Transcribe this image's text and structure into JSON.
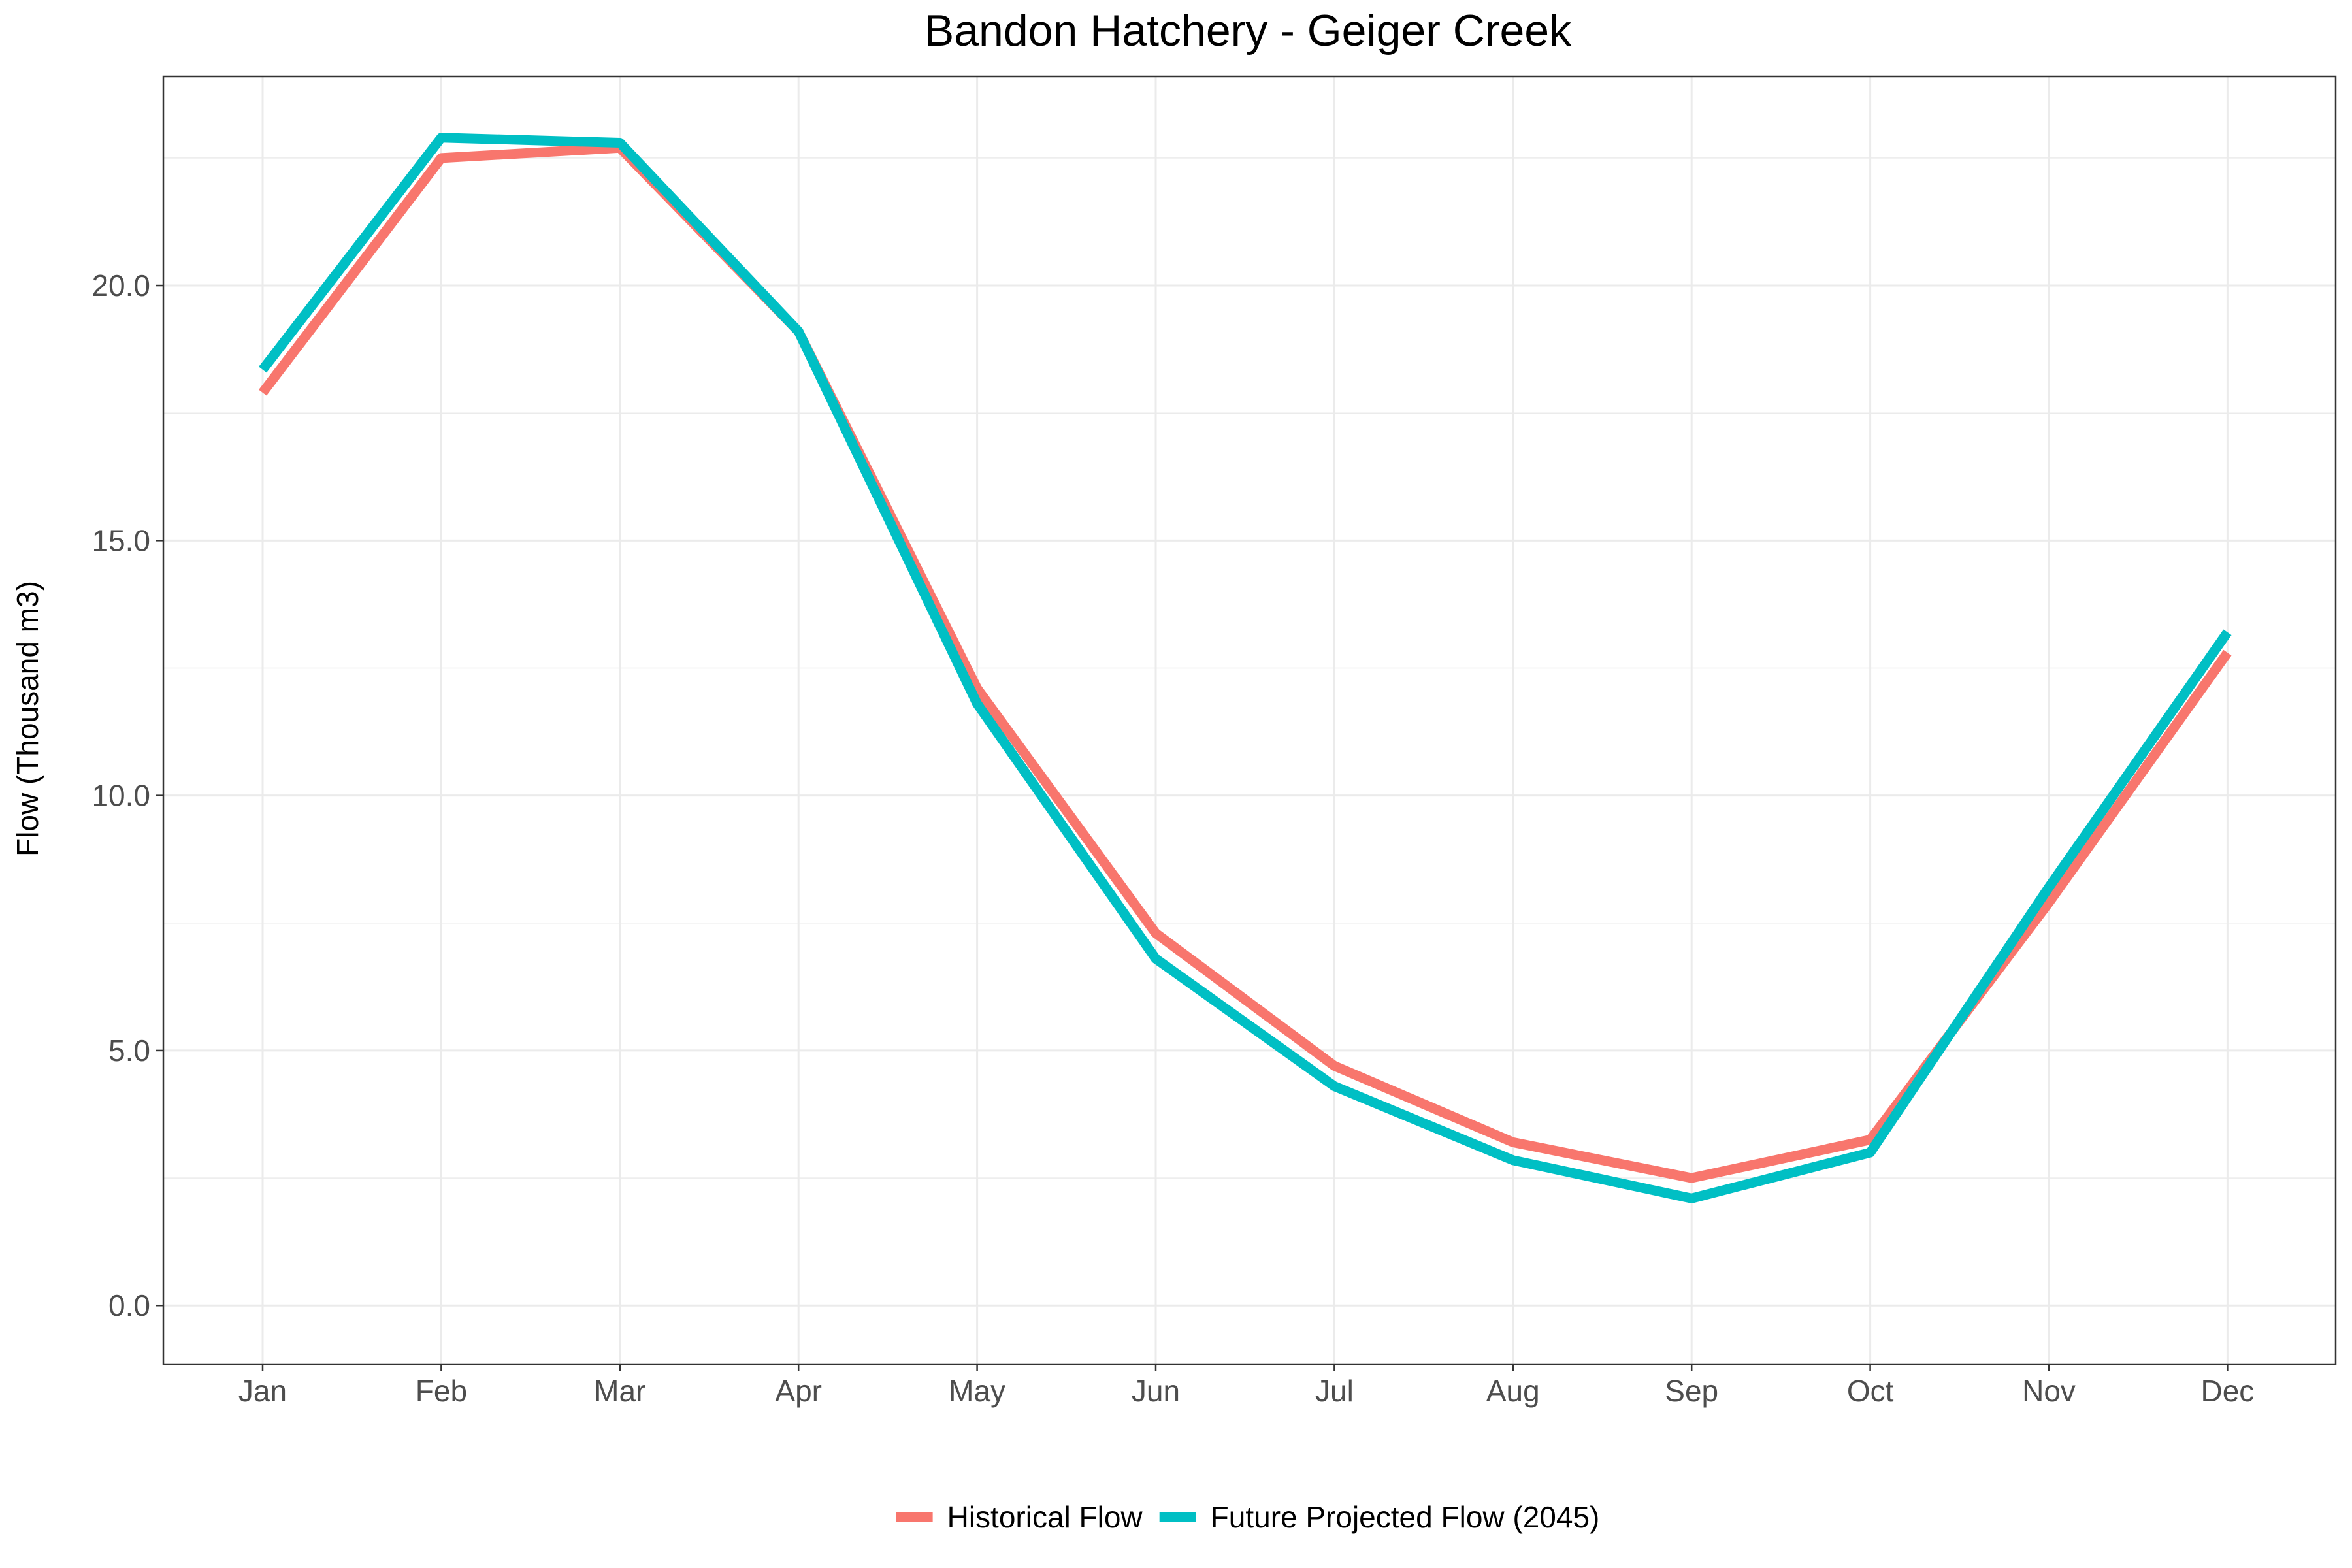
{
  "chart_data": {
    "type": "line",
    "title": "Bandon Hatchery - Geiger Creek",
    "xlabel": "",
    "ylabel": "Flow (Thousand m3)",
    "categories": [
      "Jan",
      "Feb",
      "Mar",
      "Apr",
      "May",
      "Jun",
      "Jul",
      "Aug",
      "Sep",
      "Oct",
      "Nov",
      "Dec"
    ],
    "series": [
      {
        "name": "Historical Flow",
        "color": "#F8766D",
        "values": [
          17.9,
          22.5,
          22.7,
          19.1,
          12.1,
          7.3,
          4.7,
          3.2,
          2.5,
          3.25,
          7.9,
          12.8
        ]
      },
      {
        "name": "Future Projected Flow (2045)",
        "color": "#00BFC4",
        "values": [
          18.35,
          22.9,
          22.8,
          19.1,
          11.8,
          6.8,
          4.3,
          2.85,
          2.1,
          3.0,
          8.2,
          13.2
        ]
      }
    ],
    "ylim": [
      -1.15,
      24.1
    ],
    "yticks": [
      "0.0",
      "5.0",
      "10.0",
      "15.0",
      "20.0"
    ],
    "ytick_values": [
      0,
      5,
      10,
      15,
      20
    ],
    "grid": true,
    "legend_position": "bottom",
    "panel_border": "#333333",
    "grid_color": "#ebebeb"
  }
}
